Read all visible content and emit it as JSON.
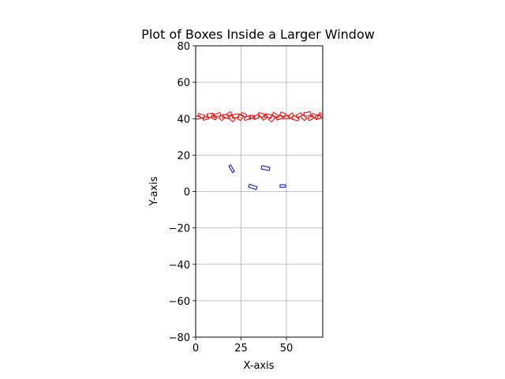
{
  "chart_data": {
    "type": "scatter",
    "title": "Plot of Boxes Inside a Larger Window",
    "xlabel": "X-axis",
    "ylabel": "Y-axis",
    "xlim": [
      0,
      70
    ],
    "ylim": [
      -80,
      80
    ],
    "x_ticks": [
      0,
      25,
      50
    ],
    "y_ticks": [
      -80,
      -60,
      -40,
      -20,
      0,
      20,
      40,
      60,
      80
    ],
    "grid": true,
    "legend": "none",
    "series": [
      {
        "color": "#0000ff",
        "boxes": [
          {
            "x": 19.8,
            "y": 12.5,
            "w": 1.2,
            "h": 4.2,
            "angle": 28
          },
          {
            "x": 38.5,
            "y": 12.8,
            "w": 4.5,
            "h": 1.8,
            "angle": -12
          },
          {
            "x": 31.5,
            "y": 2.5,
            "w": 4.5,
            "h": 1.6,
            "angle": -18
          },
          {
            "x": 48.0,
            "y": 3.0,
            "w": 3.0,
            "h": 1.4,
            "angle": 0
          }
        ]
      },
      {
        "color": "#ff0000",
        "boxes": [
          {
            "x": 0.5,
            "y": 40.5,
            "w": 4.0,
            "h": 1.6,
            "angle": 10
          },
          {
            "x": 3.0,
            "y": 41.5,
            "w": 3.5,
            "h": 1.8,
            "angle": -20
          },
          {
            "x": 5.5,
            "y": 40.2,
            "w": 3.0,
            "h": 1.5,
            "angle": 15
          },
          {
            "x": 8.0,
            "y": 41.8,
            "w": 3.5,
            "h": 2.0,
            "angle": 5
          },
          {
            "x": 10.0,
            "y": 40.8,
            "w": 3.0,
            "h": 1.8,
            "angle": -30
          },
          {
            "x": 12.0,
            "y": 42.0,
            "w": 3.5,
            "h": 1.6,
            "angle": 20
          },
          {
            "x": 14.5,
            "y": 40.5,
            "w": 2.5,
            "h": 2.2,
            "angle": 45
          },
          {
            "x": 16.5,
            "y": 41.2,
            "w": 3.0,
            "h": 1.8,
            "angle": -10
          },
          {
            "x": 18.5,
            "y": 42.5,
            "w": 2.5,
            "h": 1.6,
            "angle": 30
          },
          {
            "x": 20.0,
            "y": 40.0,
            "w": 3.0,
            "h": 2.0,
            "angle": -40
          },
          {
            "x": 22.0,
            "y": 41.5,
            "w": 3.5,
            "h": 1.8,
            "angle": 8
          },
          {
            "x": 24.5,
            "y": 40.8,
            "w": 3.0,
            "h": 2.2,
            "angle": 60
          },
          {
            "x": 26.5,
            "y": 42.0,
            "w": 3.0,
            "h": 1.6,
            "angle": -25
          },
          {
            "x": 28.5,
            "y": 40.3,
            "w": 3.5,
            "h": 1.8,
            "angle": 12
          },
          {
            "x": 31.0,
            "y": 41.0,
            "w": 3.0,
            "h": 1.5,
            "angle": -5
          },
          {
            "x": 33.5,
            "y": 41.0,
            "w": 3.5,
            "h": 1.8,
            "angle": 25
          },
          {
            "x": 36.0,
            "y": 42.0,
            "w": 3.0,
            "h": 2.0,
            "angle": -15
          },
          {
            "x": 38.0,
            "y": 40.6,
            "w": 3.0,
            "h": 1.6,
            "angle": 35
          },
          {
            "x": 40.0,
            "y": 41.5,
            "w": 3.5,
            "h": 1.8,
            "angle": -8
          },
          {
            "x": 42.0,
            "y": 40.0,
            "w": 3.0,
            "h": 2.2,
            "angle": 50
          },
          {
            "x": 44.0,
            "y": 41.8,
            "w": 3.5,
            "h": 1.6,
            "angle": -35
          },
          {
            "x": 46.0,
            "y": 40.5,
            "w": 3.0,
            "h": 1.8,
            "angle": 18
          },
          {
            "x": 48.0,
            "y": 42.2,
            "w": 3.0,
            "h": 2.0,
            "angle": -22
          },
          {
            "x": 50.0,
            "y": 40.8,
            "w": 3.5,
            "h": 1.6,
            "angle": 5
          },
          {
            "x": 52.5,
            "y": 41.5,
            "w": 3.0,
            "h": 1.8,
            "angle": 40
          },
          {
            "x": 55.0,
            "y": 40.2,
            "w": 3.5,
            "h": 2.0,
            "angle": -12
          },
          {
            "x": 57.0,
            "y": 41.8,
            "w": 3.0,
            "h": 1.6,
            "angle": 28
          },
          {
            "x": 59.5,
            "y": 40.6,
            "w": 3.0,
            "h": 1.8,
            "angle": -45
          },
          {
            "x": 61.5,
            "y": 42.5,
            "w": 3.5,
            "h": 2.0,
            "angle": 10
          },
          {
            "x": 63.5,
            "y": 40.3,
            "w": 3.0,
            "h": 1.6,
            "angle": 30
          },
          {
            "x": 65.5,
            "y": 41.5,
            "w": 3.5,
            "h": 1.8,
            "angle": -18
          },
          {
            "x": 67.5,
            "y": 40.8,
            "w": 3.0,
            "h": 2.0,
            "angle": 15
          },
          {
            "x": 69.0,
            "y": 42.0,
            "w": 2.5,
            "h": 1.6,
            "angle": -30
          }
        ]
      }
    ]
  }
}
